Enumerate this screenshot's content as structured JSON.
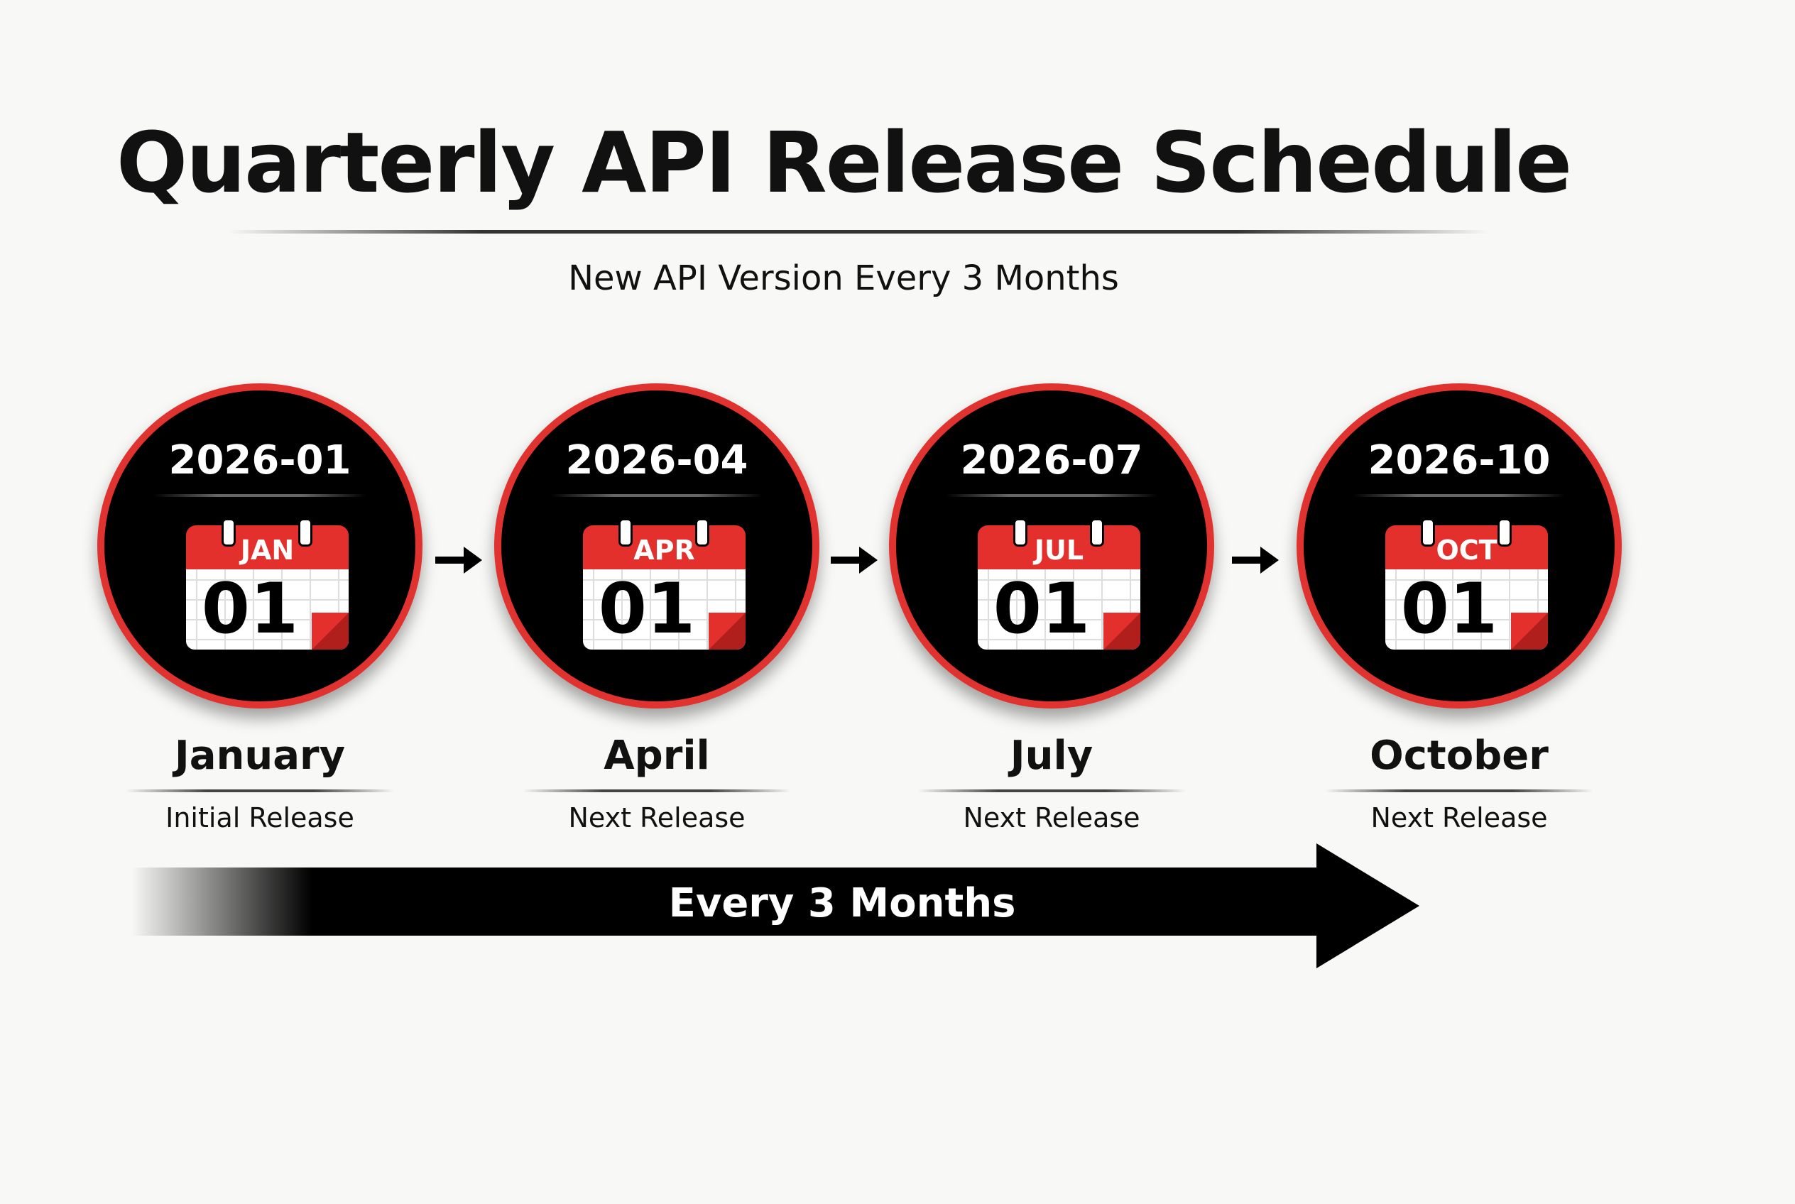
{
  "title": "Quarterly API Release Schedule",
  "subtitle": "New API Version Every 3 Months",
  "milestones": [
    {
      "date": "2026-01",
      "cal_month": "JAN",
      "cal_day": "01",
      "month": "January",
      "label": "Initial Release"
    },
    {
      "date": "2026-04",
      "cal_month": "APR",
      "cal_day": "01",
      "month": "April",
      "label": "Next Release"
    },
    {
      "date": "2026-07",
      "cal_month": "JUL",
      "cal_day": "01",
      "month": "July",
      "label": "Next Release"
    },
    {
      "date": "2026-10",
      "cal_month": "OCT",
      "cal_day": "01",
      "month": "October",
      "label": "Next Release"
    }
  ],
  "timeline_arrow_label": "Every 3 Months",
  "colors": {
    "accent": "#e3302c",
    "circle": "#000000",
    "background": "#f8f8f6"
  },
  "icons": [
    "calendar-icon",
    "arrow-right-icon"
  ]
}
